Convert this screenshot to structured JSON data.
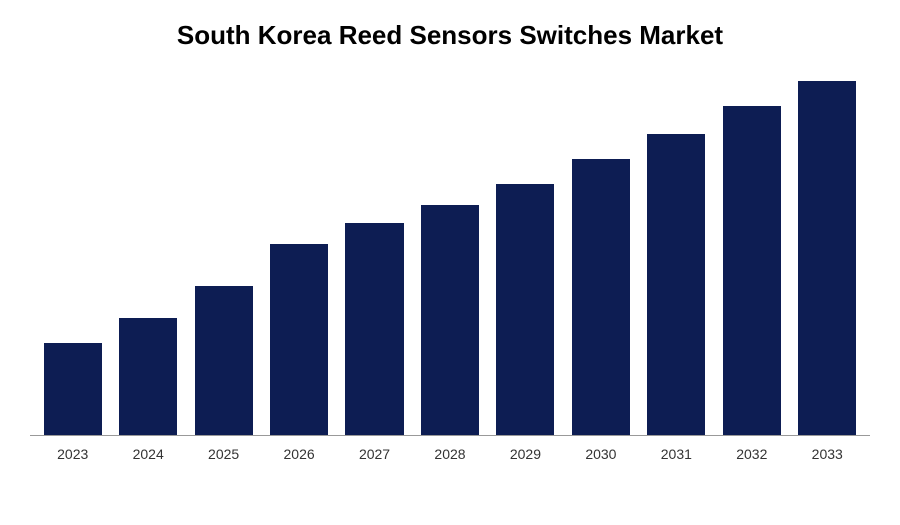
{
  "chart": {
    "type": "bar",
    "title": "South Korea Reed Sensors Switches Market",
    "title_fontsize": 26,
    "title_fontweight": "bold",
    "title_color": "#000000",
    "background_color": "#ffffff",
    "categories": [
      "2023",
      "2024",
      "2025",
      "2026",
      "2027",
      "2028",
      "2029",
      "2030",
      "2031",
      "2032",
      "2033"
    ],
    "values": [
      26,
      33,
      42,
      54,
      60,
      65,
      71,
      78,
      85,
      93,
      100
    ],
    "bar_color": "#0d1d53",
    "axis_line_color": "#999999",
    "label_fontsize": 14,
    "label_color": "#333333",
    "ylim": [
      0,
      100
    ],
    "bar_width_pct": 7
  }
}
